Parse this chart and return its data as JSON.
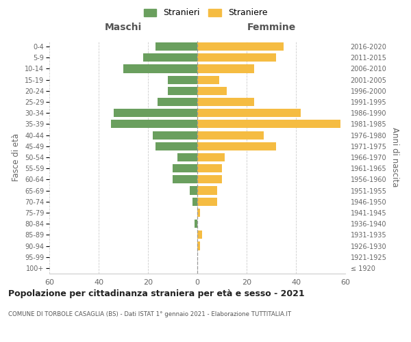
{
  "age_groups": [
    "100+",
    "95-99",
    "90-94",
    "85-89",
    "80-84",
    "75-79",
    "70-74",
    "65-69",
    "60-64",
    "55-59",
    "50-54",
    "45-49",
    "40-44",
    "35-39",
    "30-34",
    "25-29",
    "20-24",
    "15-19",
    "10-14",
    "5-9",
    "0-4"
  ],
  "birth_years": [
    "≤ 1920",
    "1921-1925",
    "1926-1930",
    "1931-1935",
    "1936-1940",
    "1941-1945",
    "1946-1950",
    "1951-1955",
    "1956-1960",
    "1961-1965",
    "1966-1970",
    "1971-1975",
    "1976-1980",
    "1981-1985",
    "1986-1990",
    "1991-1995",
    "1996-2000",
    "2001-2005",
    "2006-2010",
    "2011-2015",
    "2016-2020"
  ],
  "maschi": [
    0,
    0,
    0,
    0,
    1,
    0,
    2,
    3,
    10,
    10,
    8,
    17,
    18,
    35,
    34,
    16,
    12,
    12,
    30,
    22,
    17
  ],
  "femmine": [
    0,
    0,
    1,
    2,
    0,
    1,
    8,
    8,
    10,
    10,
    11,
    32,
    27,
    58,
    42,
    23,
    12,
    9,
    23,
    32,
    35
  ],
  "color_maschi": "#6a9f5e",
  "color_femmine": "#f5bc42",
  "title": "Popolazione per cittadinanza straniera per età e sesso - 2021",
  "subtitle": "COMUNE DI TORBOLE CASAGLIA (BS) - Dati ISTAT 1° gennaio 2021 - Elaborazione TUTTITALIA.IT",
  "xlabel_left": "Maschi",
  "xlabel_right": "Femmine",
  "ylabel_left": "Fasce di età",
  "ylabel_right": "Anni di nascita",
  "legend_maschi": "Stranieri",
  "legend_femmine": "Straniere",
  "xlim": 60,
  "background_color": "#ffffff",
  "grid_color": "#cccccc"
}
